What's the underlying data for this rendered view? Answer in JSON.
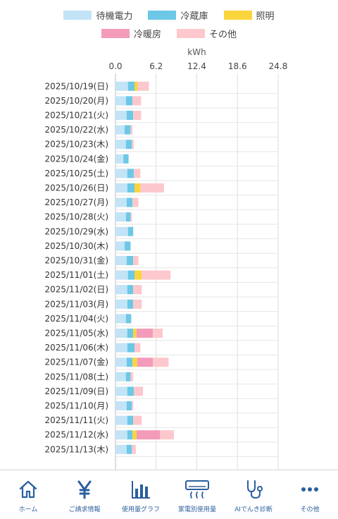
{
  "chart_data": {
    "type": "bar",
    "orientation": "horizontal",
    "stacked": true,
    "title": "",
    "xlabel": "kWh",
    "ylabel": "",
    "xlim": [
      0,
      24.8
    ],
    "x_ticks": [
      "0.0",
      "6.2",
      "12.4",
      "18.6",
      "24.8"
    ],
    "grid": true,
    "legend_position": "top-center",
    "categories": [
      "2025/10/19(日)",
      "2025/10/20(月)",
      "2025/10/21(火)",
      "2025/10/22(水)",
      "2025/10/23(木)",
      "2025/10/24(金)",
      "2025/10/25(土)",
      "2025/10/26(日)",
      "2025/10/27(月)",
      "2025/10/28(火)",
      "2025/10/29(水)",
      "2025/10/30(木)",
      "2025/10/31(金)",
      "2025/11/01(土)",
      "2025/11/02(日)",
      "2025/11/03(月)",
      "2025/11/04(火)",
      "2025/11/05(水)",
      "2025/11/06(木)",
      "2025/11/07(金)",
      "2025/11/08(土)",
      "2025/11/09(日)",
      "2025/11/10(月)",
      "2025/11/11(火)",
      "2025/11/12(水)",
      "2025/11/13(木)"
    ],
    "series": [
      {
        "name": "待機電力",
        "color": "#c3e3f6",
        "values": [
          1.9,
          1.6,
          1.7,
          1.4,
          1.6,
          1.2,
          1.8,
          1.8,
          1.7,
          1.6,
          1.9,
          1.4,
          1.7,
          1.9,
          1.8,
          1.8,
          1.6,
          1.8,
          1.8,
          1.7,
          1.6,
          1.8,
          1.7,
          1.8,
          1.8,
          1.7
        ]
      },
      {
        "name": "冷蔵庫",
        "color": "#6cc8e6",
        "values": [
          1.0,
          1.0,
          1.0,
          0.9,
          0.9,
          0.8,
          1.0,
          1.1,
          0.9,
          0.7,
          0.8,
          0.9,
          1.0,
          1.0,
          0.9,
          0.9,
          0.8,
          0.9,
          1.1,
          0.9,
          0.7,
          1.0,
          0.8,
          0.9,
          0.8,
          0.8
        ]
      },
      {
        "name": "照明",
        "color": "#fbd53c",
        "values": [
          0.5,
          0.0,
          0.0,
          0.0,
          0.0,
          0.0,
          0.0,
          0.9,
          0.0,
          0.0,
          0.0,
          0.0,
          0.0,
          1.1,
          0.0,
          0.0,
          0.0,
          0.5,
          0.0,
          0.7,
          0.0,
          0.0,
          0.0,
          0.0,
          0.6,
          0.0
        ]
      },
      {
        "name": "冷暖房",
        "color": "#f39bb9",
        "values": [
          0,
          0,
          0,
          0,
          0,
          0,
          0,
          0,
          0,
          0,
          0,
          0,
          0,
          0,
          0,
          0,
          0,
          2.5,
          0,
          2.4,
          0,
          0,
          0,
          0,
          3.6,
          0
        ]
      },
      {
        "name": "その他",
        "color": "#fcc8cd",
        "values": [
          1.7,
          1.3,
          1.2,
          0.3,
          0.3,
          0.0,
          1.0,
          3.6,
          0.9,
          0.2,
          0.0,
          0.0,
          0.8,
          4.4,
          1.3,
          1.3,
          0.0,
          1.5,
          0.9,
          2.4,
          0.4,
          1.4,
          0.2,
          1.3,
          2.1,
          0.6
        ]
      }
    ]
  },
  "tabbar": {
    "items": [
      {
        "label": "ホーム",
        "icon": "home-icon"
      },
      {
        "label": "ご請求情報",
        "icon": "yen-icon"
      },
      {
        "label": "使用量グラフ",
        "icon": "bar-chart-icon"
      },
      {
        "label": "家電別使用量",
        "icon": "air-conditioner-icon"
      },
      {
        "label": "AIでんき診断",
        "icon": "stethoscope-icon"
      },
      {
        "label": "その他",
        "icon": "more-icon"
      }
    ]
  }
}
